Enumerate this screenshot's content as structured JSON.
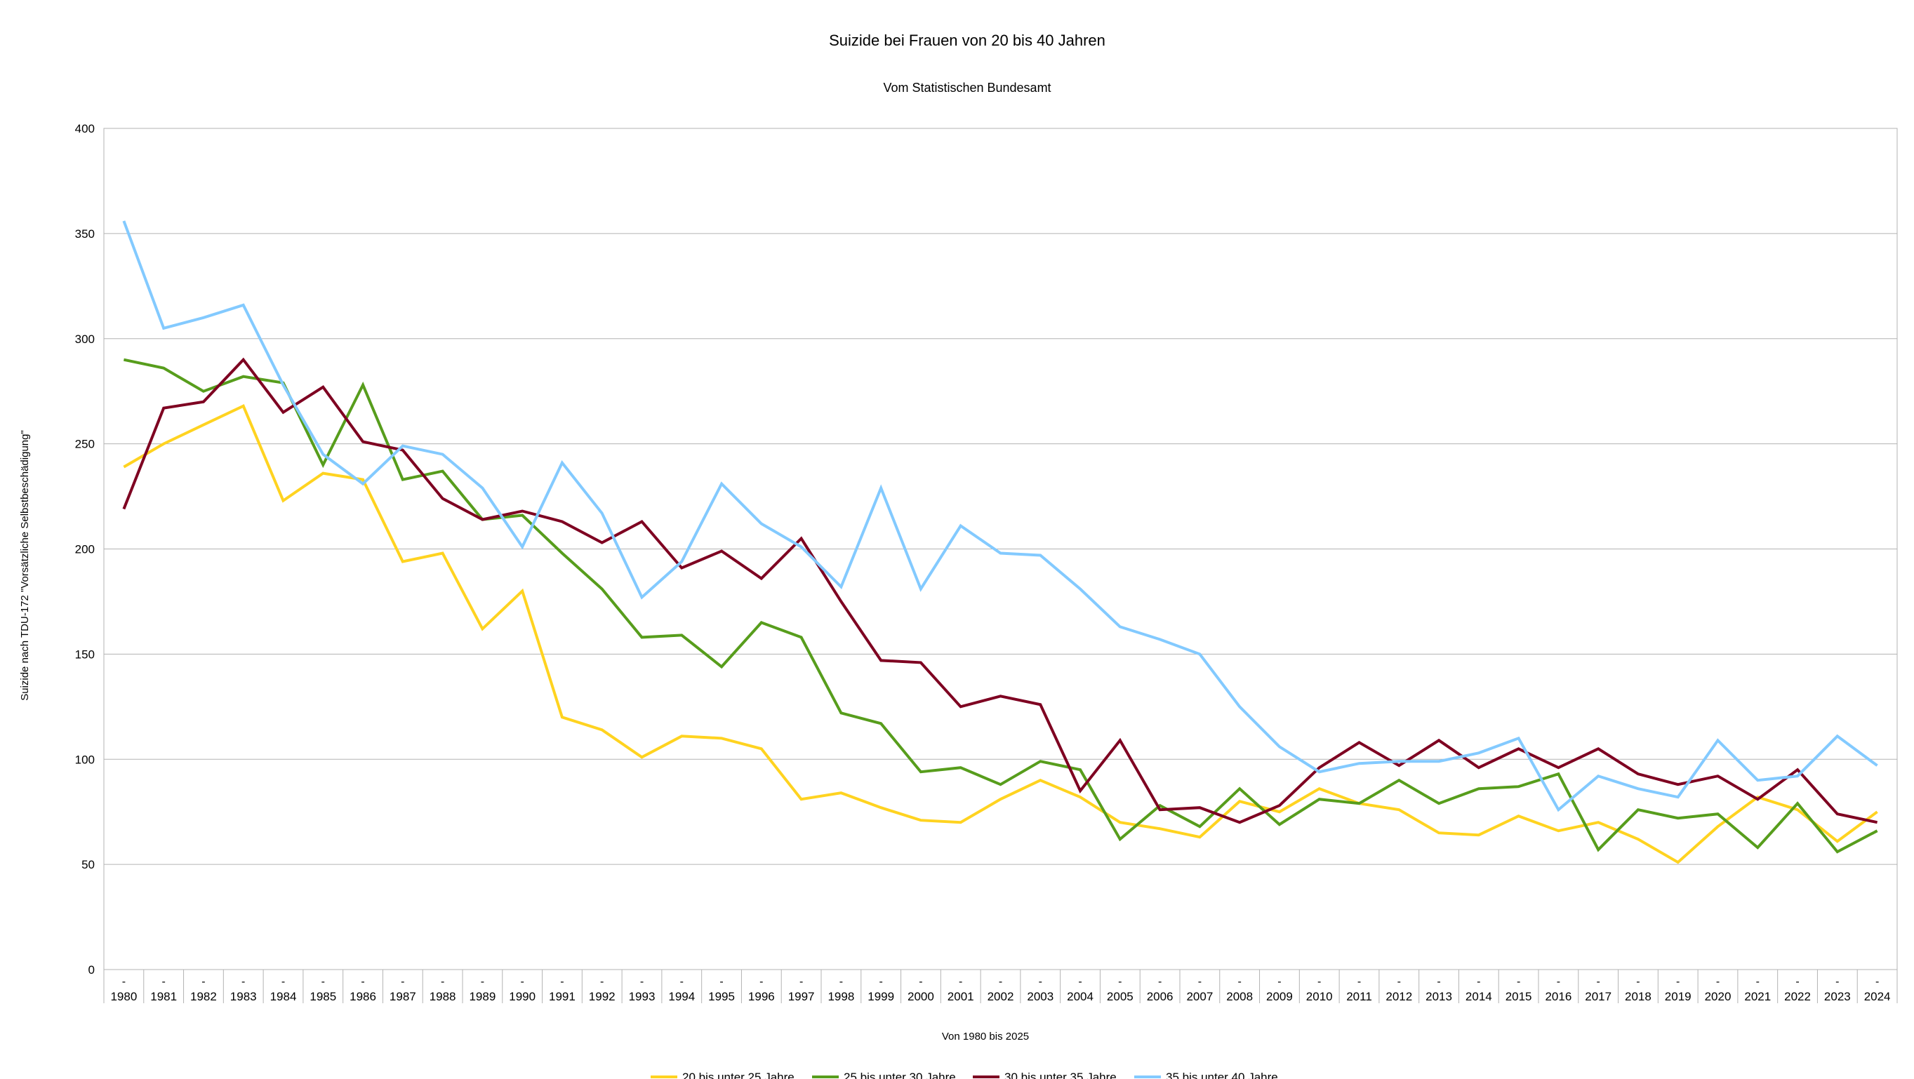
{
  "chart_data": {
    "type": "line",
    "title": "Suizide bei Frauen von 20 bis 40 Jahren",
    "subtitle": "Vom Statistischen Bundesamt",
    "xlabel": "Von 1980 bis 2025",
    "ylabel": "Suizide nach TDU-172 \"Vorsätzliche Selbstbeschädigung\"",
    "ylim": [
      0,
      400
    ],
    "yticks": [
      0,
      50,
      100,
      150,
      200,
      250,
      300,
      350,
      400
    ],
    "grid": true,
    "legend_position": "bottom",
    "tick_marker": "-",
    "categories": [
      "1980",
      "1981",
      "1982",
      "1983",
      "1984",
      "1985",
      "1986",
      "1987",
      "1988",
      "1989",
      "1990",
      "1991",
      "1992",
      "1993",
      "1994",
      "1995",
      "1996",
      "1997",
      "1998",
      "1999",
      "2000",
      "2001",
      "2002",
      "2003",
      "2004",
      "2005",
      "2006",
      "2007",
      "2008",
      "2009",
      "2010",
      "2011",
      "2012",
      "2013",
      "2014",
      "2015",
      "2016",
      "2017",
      "2018",
      "2019",
      "2020",
      "2021",
      "2022",
      "2023",
      "2024"
    ],
    "series": [
      {
        "name": "20 bis unter 25 Jahre",
        "color": "#FFD320",
        "values": [
          239,
          250,
          259,
          268,
          223,
          236,
          233,
          194,
          198,
          162,
          180,
          120,
          114,
          101,
          111,
          110,
          105,
          81,
          84,
          77,
          71,
          70,
          81,
          90,
          82,
          70,
          67,
          63,
          80,
          75,
          86,
          79,
          76,
          65,
          64,
          73,
          66,
          70,
          62,
          51,
          68,
          82,
          76,
          61,
          75
        ]
      },
      {
        "name": "25 bis unter 30 Jahre",
        "color": "#579D1C",
        "values": [
          290,
          286,
          275,
          282,
          279,
          240,
          278,
          233,
          237,
          214,
          216,
          198,
          181,
          158,
          159,
          144,
          165,
          158,
          122,
          117,
          94,
          96,
          88,
          99,
          95,
          62,
          78,
          68,
          86,
          69,
          81,
          79,
          90,
          79,
          86,
          87,
          93,
          57,
          76,
          72,
          74,
          58,
          79,
          56,
          66
        ]
      },
      {
        "name": "30 bis unter 35 Jahre",
        "color": "#7E0021",
        "values": [
          219,
          267,
          270,
          290,
          265,
          277,
          251,
          247,
          224,
          214,
          218,
          213,
          203,
          213,
          191,
          199,
          186,
          205,
          175,
          147,
          146,
          125,
          130,
          126,
          85,
          109,
          76,
          77,
          70,
          78,
          96,
          108,
          97,
          109,
          96,
          105,
          96,
          105,
          93,
          88,
          92,
          81,
          95,
          74,
          70
        ]
      },
      {
        "name": "35 bis unter 40 Jahre",
        "color": "#83CAFF",
        "values": [
          356,
          305,
          310,
          316,
          278,
          245,
          231,
          249,
          245,
          229,
          201,
          241,
          217,
          177,
          194,
          231,
          212,
          201,
          182,
          229,
          181,
          211,
          198,
          197,
          181,
          163,
          157,
          150,
          125,
          106,
          94,
          98,
          99,
          99,
          103,
          110,
          76,
          92,
          86,
          82,
          109,
          90,
          92,
          111,
          97
        ]
      }
    ]
  }
}
